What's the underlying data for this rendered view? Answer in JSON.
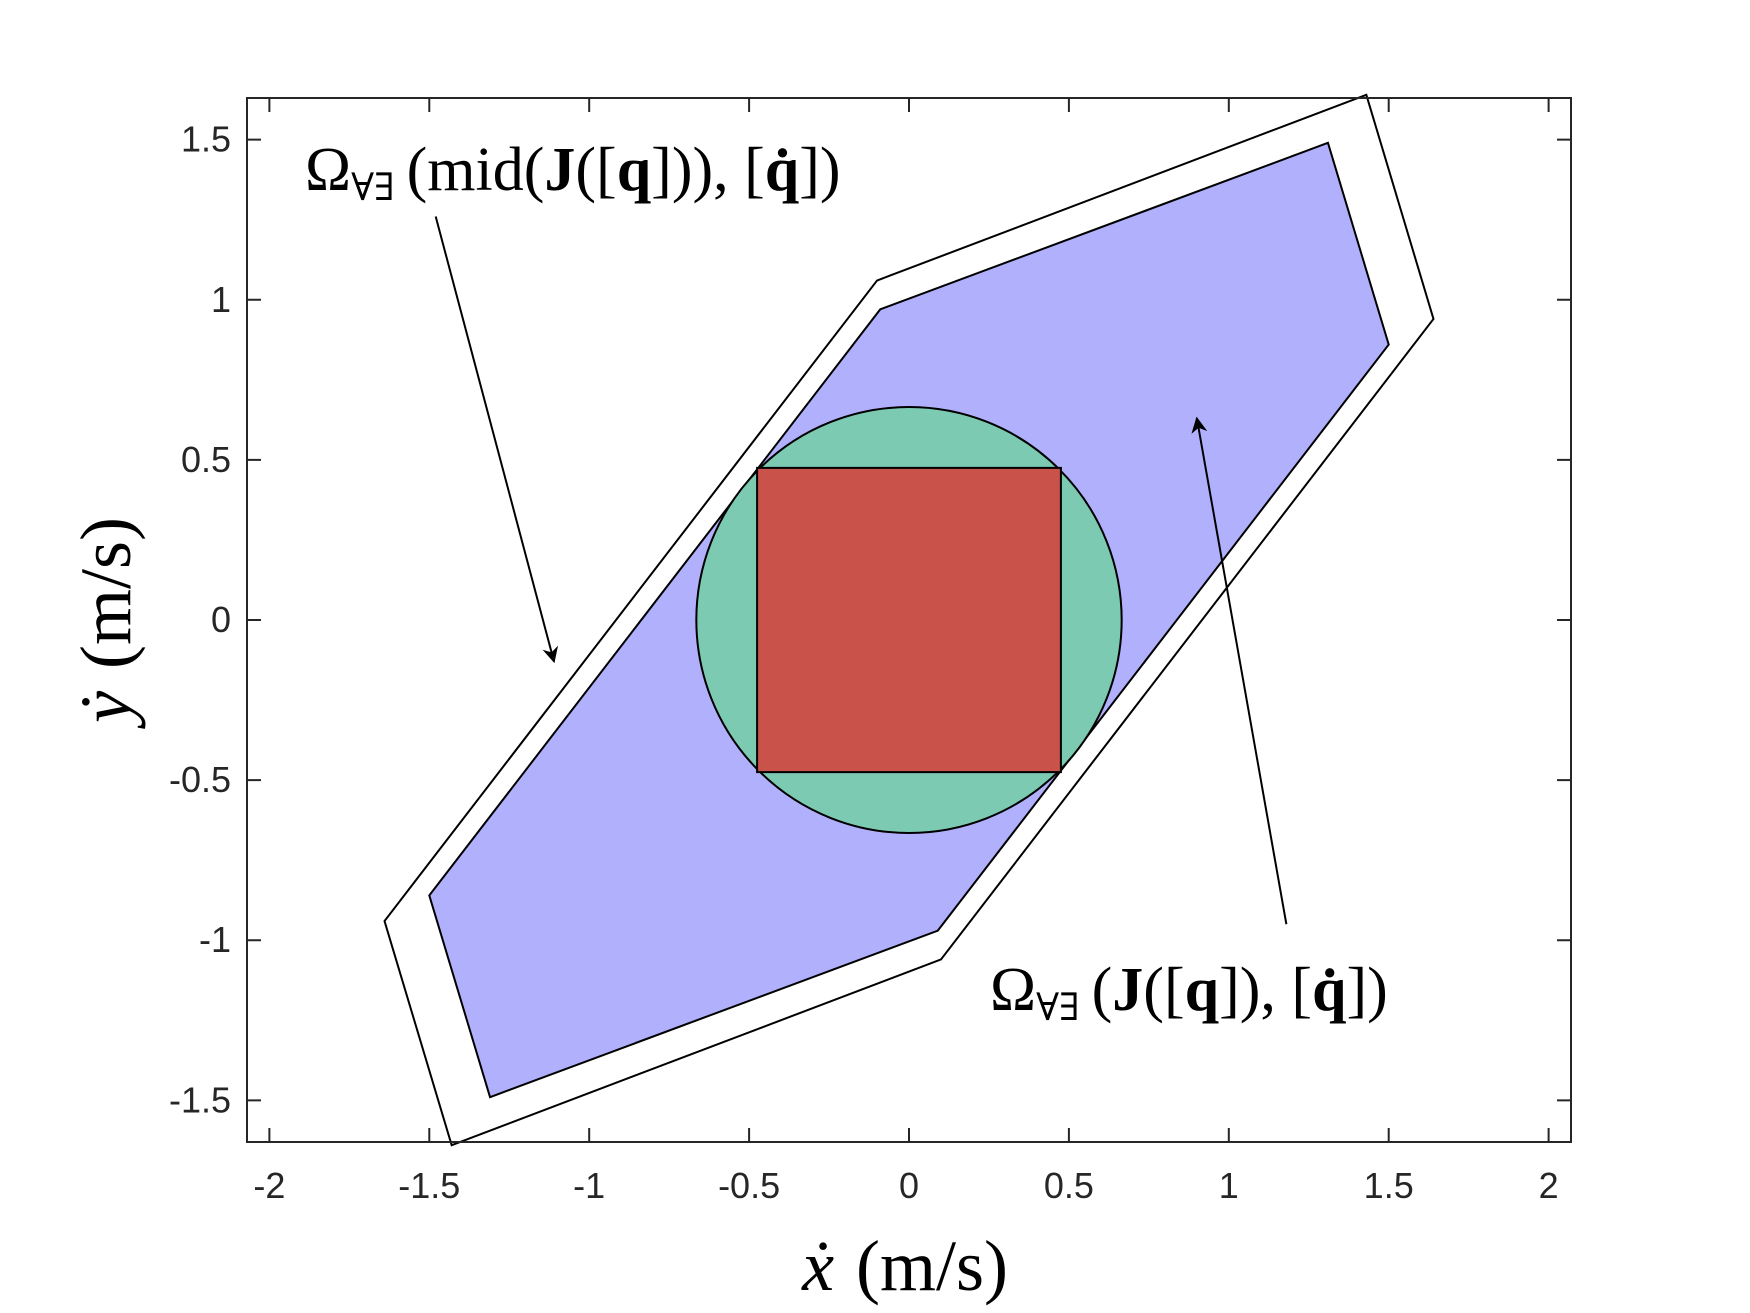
{
  "chart_data": {
    "type": "area",
    "xlabel": {
      "var": "ẋ",
      "unit": "(m/s)"
    },
    "ylabel": {
      "var": "ẏ",
      "unit": "(m/s)"
    },
    "xlim": [
      -2.07,
      2.07
    ],
    "ylim": [
      -1.63,
      1.63
    ],
    "xticks": [
      -2,
      -1.5,
      -1,
      -0.5,
      0,
      0.5,
      1,
      1.5,
      2
    ],
    "xtick_labels": [
      "-2",
      "-1.5",
      "-1",
      "-0.5",
      "0",
      "0.5",
      "1",
      "1.5",
      "2"
    ],
    "yticks": [
      -1.5,
      -1,
      -0.5,
      0,
      0.5,
      1,
      1.5
    ],
    "ytick_labels": [
      "-1.5",
      "-1",
      "-0.5",
      "0",
      "0.5",
      "1",
      "1.5"
    ],
    "grid": false,
    "series": [
      {
        "shape": "polygon",
        "fill": "none",
        "stroke": "#000000",
        "points": [
          [
            1.43,
            1.64
          ],
          [
            1.64,
            0.94
          ],
          [
            0.1,
            -1.06
          ],
          [
            -1.43,
            -1.64
          ],
          [
            -1.64,
            -0.94
          ],
          [
            -0.1,
            1.06
          ]
        ]
      },
      {
        "shape": "polygon",
        "fill": "#b0b0fc",
        "stroke": "#000000",
        "points": [
          [
            1.31,
            1.49
          ],
          [
            1.5,
            0.86
          ],
          [
            0.09,
            -0.97
          ],
          [
            -1.31,
            -1.49
          ],
          [
            -1.5,
            -0.86
          ],
          [
            -0.09,
            0.97
          ]
        ]
      },
      {
        "shape": "circle",
        "fill": "#7ccab2",
        "stroke": "#000000",
        "center": [
          0,
          0
        ],
        "radius": 0.665
      },
      {
        "shape": "rect",
        "fill": "#c9524a",
        "stroke": "#000000",
        "x": [
          -0.475,
          0.475
        ],
        "y": [
          -0.475,
          0.475
        ]
      }
    ],
    "annotations": [
      {
        "text": {
          "omega": "Ω",
          "sub": "∀∃",
          "open": "(mid(",
          "J": "J",
          "mid": "([",
          "q": "q",
          "close1": "])), [",
          "qdot": "q̇",
          "close2": "])"
        },
        "arrow_from": [
          -1.48,
          1.26
        ],
        "arrow_to": [
          -1.11,
          -0.13
        ]
      },
      {
        "text": {
          "omega": "Ω",
          "sub": "∀∃",
          "open": "(",
          "J": "J",
          "mid": "([",
          "q": "q",
          "close1": "]), [",
          "qdot": "q̇",
          "close2": "])"
        },
        "arrow_from": [
          1.18,
          -0.95
        ],
        "arrow_to": [
          0.9,
          0.63
        ]
      }
    ]
  }
}
